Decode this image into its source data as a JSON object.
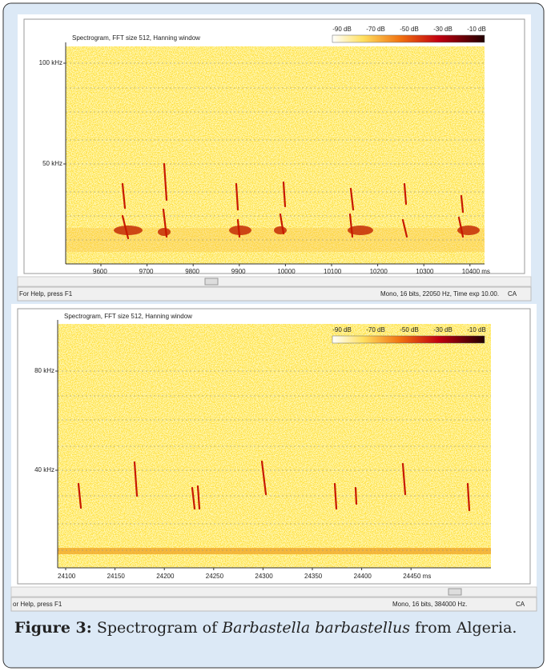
{
  "panels": [
    {
      "title": "Spectrogram, FFT size 512, Hanning window",
      "colorbar_labels": [
        "-90 dB",
        "-70 dB",
        "-50 dB",
        "-30 dB",
        "-10 dB"
      ],
      "y_labels": [
        "100 kHz",
        "50 kHz"
      ],
      "x_labels": [
        "9600",
        "9700",
        "9800",
        "9900",
        "10000",
        "10100",
        "10200",
        "10300",
        "10400 ms"
      ],
      "status_left": "For Help, press F1",
      "status_right": "Mono, 16 bits, 22050 Hz, Time exp 10.00.",
      "status_end": "CA"
    },
    {
      "title": "Spectrogram, FFT size 512, Hanning window",
      "colorbar_labels": [
        "-90 dB",
        "-70 dB",
        "-50 dB",
        "-30 dB",
        "-10 dB"
      ],
      "y_labels": [
        "80 kHz",
        "40 kHz"
      ],
      "x_labels": [
        "24100",
        "24150",
        "24200",
        "24250",
        "24300",
        "24350",
        "24400",
        "24450 ms"
      ],
      "status_left": "or Help, press F1",
      "status_right": "Mono, 16 bits, 384000 Hz.",
      "status_end": "CA"
    }
  ],
  "caption": {
    "label": "Figure 3:",
    "text_1": "Spectrogram of",
    "species": "Barbastella barbastellus",
    "text_2": "from Algeria."
  }
}
